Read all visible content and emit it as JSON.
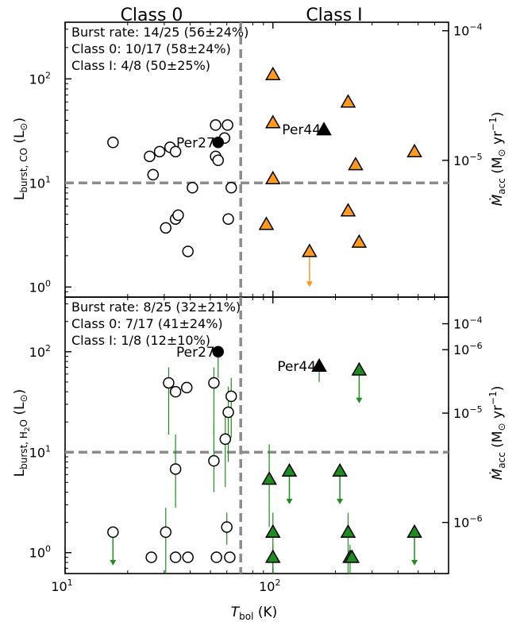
{
  "figure": {
    "class_labels": [
      "Class 0",
      "Class I"
    ],
    "x_axis": {
      "label": "T",
      "label_sub": "bol",
      "label_unit": "(K)",
      "scale": "log",
      "range": [
        10,
        700
      ],
      "ticks": [
        {
          "v": 10,
          "base": "10",
          "exp": "1"
        },
        {
          "v": 100,
          "base": "10",
          "exp": "2"
        }
      ]
    },
    "divider_x": 70,
    "threshold_y": 10,
    "right_axis": {
      "label": "Ṁ",
      "label_sub": "acc",
      "label_unit_pre": "(M",
      "label_unit_mid": "⊙",
      "label_unit_post": " yr",
      "label_unit_exp": "−1",
      "label_close": ")"
    }
  },
  "chart_data": [
    {
      "type": "scatter",
      "panel": "top",
      "ylabel_main": "L",
      "ylabel_sub": "burst, CO",
      "ylabel_unit": "(L",
      "ylabel_unit_sym": "⊙",
      "ylabel_close": ")",
      "yscale": "log",
      "ylim": [
        0.8,
        350
      ],
      "xlim": [
        10,
        700
      ],
      "yticks": [
        {
          "v": 1,
          "base": "10",
          "exp": "0"
        },
        {
          "v": 10,
          "base": "10",
          "exp": "1"
        },
        {
          "v": 100,
          "base": "10",
          "exp": "2"
        }
      ],
      "right_ticks": [
        {
          "v": 0.25,
          "base": "10",
          "exp": "−6"
        },
        {
          "v": 16.5,
          "base": "10",
          "exp": "−5"
        },
        {
          "v": 290,
          "base": "10",
          "exp": "−4"
        }
      ],
      "stats": [
        "Burst rate: 14/25 (56±24%)",
        "Class 0: 10/17 (58±24%)",
        "Class I: 4/8 (50±25%)"
      ],
      "annotations": [
        {
          "text": "Per27",
          "x": 54.5,
          "y": 24.5,
          "anchor": "end"
        },
        {
          "text": "Per44",
          "x": 176,
          "y": 32.5,
          "anchor": "end"
        }
      ],
      "class0_circles": [
        [
          17,
          24.5
        ],
        [
          25.5,
          18
        ],
        [
          26.5,
          12
        ],
        [
          28.5,
          20
        ],
        [
          30.5,
          3.7
        ],
        [
          32,
          22
        ],
        [
          34,
          20
        ],
        [
          34,
          4.5
        ],
        [
          35,
          4.9
        ],
        [
          39,
          2.2
        ],
        [
          41,
          9
        ],
        [
          53,
          36
        ],
        [
          53,
          18
        ],
        [
          54.5,
          16.5
        ],
        [
          58.5,
          27
        ],
        [
          60.5,
          36
        ],
        [
          61,
          4.5
        ],
        [
          63,
          9
        ]
      ],
      "per27": [
        54.5,
        24.5
      ],
      "class1_triangles": [
        [
          100,
          110
        ],
        [
          100,
          38
        ],
        [
          100,
          11
        ],
        [
          93,
          4
        ],
        [
          230,
          60
        ],
        [
          230,
          5.4
        ],
        [
          250,
          15
        ],
        [
          260,
          2.7
        ],
        [
          480,
          20
        ]
      ],
      "class1_upper_limit": {
        "x": 150,
        "y": 2.2,
        "to": 1.0
      },
      "per44": [
        176,
        32.5
      ],
      "colors": {
        "class1_fill": "#ff9a1f",
        "arrow": "#ff9a1f",
        "per": "#000000"
      }
    },
    {
      "type": "scatter",
      "panel": "bottom",
      "ylabel_main": "L",
      "ylabel_sub": "burst, H",
      "ylabel_sub2": "2",
      "ylabel_sub3": "O",
      "ylabel_unit": "(L",
      "ylabel_unit_sym": "⊙",
      "ylabel_close": ")",
      "yscale": "log",
      "ylim": [
        0.62,
        350
      ],
      "xlim": [
        10,
        700
      ],
      "yticks": [
        {
          "v": 1,
          "base": "10",
          "exp": "0"
        },
        {
          "v": 10,
          "base": "10",
          "exp": "1"
        },
        {
          "v": 100,
          "base": "10",
          "exp": "2"
        }
      ],
      "right_ticks": [
        {
          "v": 2.0,
          "base": "10",
          "exp": "−6"
        },
        {
          "v": 24.5,
          "base": "10",
          "exp": "−5"
        },
        {
          "v": 190,
          "base": "10",
          "exp": "−4"
        }
      ],
      "stats": [
        "Burst rate: 8/25 (32±21%)",
        "Class 0: 7/17 (41±24%)",
        "Class I: 1/8 (12±10%)"
      ],
      "annotations": [
        {
          "text": "Per27",
          "x": 54.5,
          "y": 100,
          "anchor": "end"
        },
        {
          "text": "Per44",
          "x": 167,
          "y": 72,
          "anchor": "end"
        }
      ],
      "class0_circles": [
        {
          "x": 31.5,
          "y": 49,
          "err": [
            15,
            70
          ]
        },
        {
          "x": 34,
          "y": 40
        },
        {
          "x": 38.5,
          "y": 44
        },
        {
          "x": 34,
          "y": 6.8,
          "err": [
            2.8,
            15
          ]
        },
        {
          "x": 52,
          "y": 49,
          "err": [
            15,
            70
          ]
        },
        {
          "x": 52,
          "y": 8.2,
          "err": [
            4,
            19
          ]
        },
        {
          "x": 59,
          "y": 13.5,
          "err": [
            4.5,
            25
          ]
        },
        {
          "x": 61,
          "y": 25,
          "err": [
            8,
            45
          ]
        },
        {
          "x": 63,
          "y": 36,
          "err": [
            14,
            55
          ]
        },
        {
          "x": 60,
          "y": 1.8,
          "err": [
            1.2,
            2.5
          ]
        },
        {
          "x": 17,
          "y": 1.6,
          "limit": true
        },
        {
          "x": 30.5,
          "y": 1.6,
          "err": [
            0.6,
            2.8
          ]
        },
        {
          "x": 26,
          "y": 0.9
        },
        {
          "x": 34,
          "y": 0.9
        },
        {
          "x": 39,
          "y": 0.9
        },
        {
          "x": 53.5,
          "y": 0.9
        },
        {
          "x": 62,
          "y": 0.9
        }
      ],
      "per27": {
        "x": 54.5,
        "y": 100,
        "err": [
          55,
          100
        ]
      },
      "class1_triangles": [
        {
          "x": 96,
          "y": 5.4,
          "err": [
            1.8,
            12
          ]
        },
        {
          "x": 100,
          "y": 1.6,
          "err": [
            0.7,
            2.5
          ]
        },
        {
          "x": 100,
          "y": 0.9,
          "err": [
            0.6,
            1.2
          ]
        },
        {
          "x": 230,
          "y": 1.6,
          "err": [
            0.6,
            2.5
          ]
        },
        {
          "x": 235,
          "y": 0.9,
          "err": [
            0.6,
            1.2
          ]
        },
        {
          "x": 240,
          "y": 0.9
        },
        {
          "x": 120,
          "y": 6.5,
          "limit": true
        },
        {
          "x": 210,
          "y": 6.5,
          "limit": true
        },
        {
          "x": 260,
          "y": 66,
          "limit": true
        },
        {
          "x": 480,
          "y": 1.6,
          "limit": true
        }
      ],
      "per44": {
        "x": 167,
        "y": 72,
        "err": [
          50,
          72
        ]
      },
      "colors": {
        "class1_fill": "#1e8c1e",
        "errorbar": "#1e8c1e",
        "per": "#000000"
      }
    }
  ]
}
